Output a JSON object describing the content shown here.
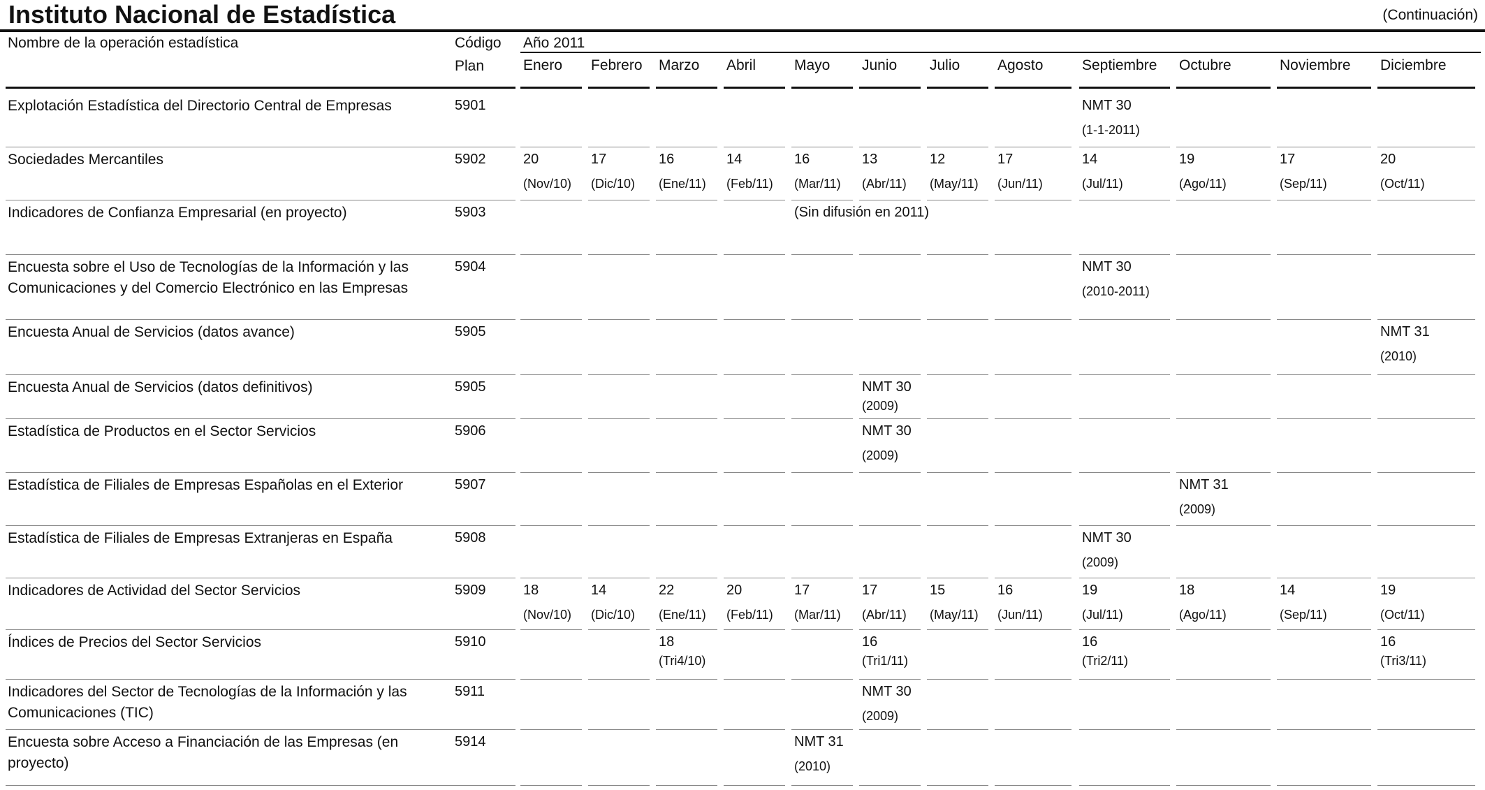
{
  "header": {
    "title": "Instituto Nacional de Estadística",
    "continuation": "(Continuación)",
    "col_name": "Nombre de la operación estadística",
    "col_code_1": "Código",
    "col_code_2": "Plan",
    "year": "Año 2011",
    "months": [
      "Enero",
      "Febrero",
      "Marzo",
      "Abril",
      "Mayo",
      "Junio",
      "Julio",
      "Agosto",
      "Septiembre",
      "Octubre",
      "Noviembre",
      "Diciembre"
    ]
  },
  "rows": [
    {
      "name": "Explotación Estadística del Directorio Central de Empresas",
      "code": "5901",
      "cells": [
        null,
        null,
        null,
        null,
        null,
        null,
        null,
        null,
        {
          "v": "NMT 30",
          "s": "(1-1-2011)"
        },
        null,
        null,
        null
      ]
    },
    {
      "name": "Sociedades Mercantiles",
      "code": "5902",
      "cells": [
        {
          "v": "20",
          "s": "(Nov/10)"
        },
        {
          "v": "17",
          "s": "(Dic/10)"
        },
        {
          "v": "16",
          "s": "(Ene/11)"
        },
        {
          "v": "14",
          "s": "(Feb/11)"
        },
        {
          "v": "16",
          "s": "(Mar/11)"
        },
        {
          "v": "13",
          "s": "(Abr/11)"
        },
        {
          "v": "12",
          "s": "(May/11)"
        },
        {
          "v": "17",
          "s": "(Jun/11)"
        },
        {
          "v": "14",
          "s": "(Jul/11)"
        },
        {
          "v": "19",
          "s": "(Ago/11)"
        },
        {
          "v": "17",
          "s": "(Sep/11)"
        },
        {
          "v": "20",
          "s": "(Oct/11)"
        }
      ]
    },
    {
      "name": "Indicadores de Confianza Empresarial (en proyecto)",
      "code": "5903",
      "cells": [
        null,
        null,
        null,
        null,
        {
          "v": "(Sin difusión en 2011)",
          "s": ""
        },
        null,
        null,
        null,
        null,
        null,
        null,
        null
      ]
    },
    {
      "name": "Encuesta sobre el Uso de Tecnologías de la Información y las Comunicaciones y del Comercio Electrónico en las Empresas",
      "code": "5904",
      "cells": [
        null,
        null,
        null,
        null,
        null,
        null,
        null,
        null,
        {
          "v": "NMT 30",
          "s": "(2010-2011)"
        },
        null,
        null,
        null
      ]
    },
    {
      "name": "Encuesta Anual de Servicios (datos avance)",
      "code": "5905",
      "cells": [
        null,
        null,
        null,
        null,
        null,
        null,
        null,
        null,
        null,
        null,
        null,
        {
          "v": "NMT 31",
          "s": "(2010)"
        }
      ]
    },
    {
      "name": "Encuesta Anual de Servicios (datos definitivos)",
      "code": "5905",
      "cells": [
        null,
        null,
        null,
        null,
        null,
        {
          "v": "NMT 30",
          "s": "(2009)"
        },
        null,
        null,
        null,
        null,
        null,
        null
      ]
    },
    {
      "name": "Estadística de Productos en el Sector Servicios",
      "code": "5906",
      "cells": [
        null,
        null,
        null,
        null,
        null,
        {
          "v": "NMT 30",
          "s": "(2009)"
        },
        null,
        null,
        null,
        null,
        null,
        null
      ]
    },
    {
      "name": "Estadística de Filiales de Empresas Españolas en el Exterior",
      "code": "5907",
      "cells": [
        null,
        null,
        null,
        null,
        null,
        null,
        null,
        null,
        null,
        {
          "v": "NMT 31",
          "s": "(2009)"
        },
        null,
        null
      ]
    },
    {
      "name": "Estadística de Filiales de Empresas Extranjeras en España",
      "code": "5908",
      "cells": [
        null,
        null,
        null,
        null,
        null,
        null,
        null,
        null,
        {
          "v": "NMT 30",
          "s": "(2009)"
        },
        null,
        null,
        null
      ]
    },
    {
      "name": "Indicadores de Actividad del Sector Servicios",
      "code": "5909",
      "cells": [
        {
          "v": "18",
          "s": "(Nov/10)"
        },
        {
          "v": "14",
          "s": "(Dic/10)"
        },
        {
          "v": "22",
          "s": "(Ene/11)"
        },
        {
          "v": "20",
          "s": "(Feb/11)"
        },
        {
          "v": "17",
          "s": "(Mar/11)"
        },
        {
          "v": "17",
          "s": "(Abr/11)"
        },
        {
          "v": "15",
          "s": "(May/11)"
        },
        {
          "v": "16",
          "s": "(Jun/11)"
        },
        {
          "v": "19",
          "s": "(Jul/11)"
        },
        {
          "v": "18",
          "s": "(Ago/11)"
        },
        {
          "v": "14",
          "s": "(Sep/11)"
        },
        {
          "v": "19",
          "s": "(Oct/11)"
        }
      ]
    },
    {
      "name": "Índices de Precios del Sector Servicios",
      "code": "5910",
      "cells": [
        null,
        null,
        {
          "v": "18",
          "s": "(Tri4/10)"
        },
        null,
        null,
        {
          "v": "16",
          "s": "(Tri1/11)"
        },
        null,
        null,
        {
          "v": "16",
          "s": "(Tri2/11)"
        },
        null,
        null,
        {
          "v": "16",
          "s": "(Tri3/11)"
        }
      ]
    },
    {
      "name": "Indicadores del Sector de Tecnologías de la Información y las Comunicaciones (TIC)",
      "code": "5911",
      "cells": [
        null,
        null,
        null,
        null,
        null,
        {
          "v": "NMT 30",
          "s": "(2009)"
        },
        null,
        null,
        null,
        null,
        null,
        null
      ]
    },
    {
      "name": "Encuesta sobre Acceso a Financiación de las Empresas (en proyecto)",
      "code": "5914",
      "cells": [
        null,
        null,
        null,
        null,
        {
          "v": "NMT 31",
          "s": "(2010)"
        },
        null,
        null,
        null,
        null,
        null,
        null,
        null
      ]
    }
  ]
}
